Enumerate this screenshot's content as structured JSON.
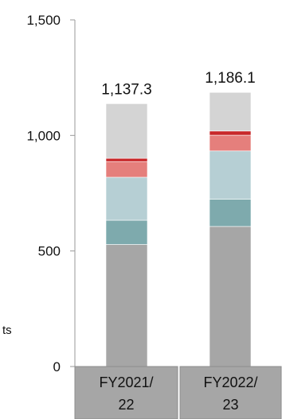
{
  "chart_data": {
    "type": "bar",
    "stacked": true,
    "categories": [
      {
        "line1": "FY2021/",
        "line2": "22"
      },
      {
        "line1": "FY2022/",
        "line2": "23"
      }
    ],
    "yticks": [
      "0",
      "500",
      "1,000",
      "1,500"
    ],
    "ylim": [
      0,
      1500
    ],
    "grid": false,
    "side_text": "ts",
    "series": [
      {
        "color": "#a6a6a6",
        "values": [
          528,
          606
        ]
      },
      {
        "color": "#7eaaad",
        "values": [
          105,
          118
        ]
      },
      {
        "color": "#b6cfd4",
        "values": [
          186,
          209
        ]
      },
      {
        "color": "#e57f7c",
        "values": [
          68,
          68
        ]
      },
      {
        "color": "#c8282a",
        "values": [
          14,
          18
        ]
      },
      {
        "color": "#d4d4d4",
        "values": [
          236.3,
          167.1
        ]
      }
    ],
    "totals": [
      "1,137.3",
      "1,186.1"
    ],
    "category_fill": "#a6a6a6"
  }
}
